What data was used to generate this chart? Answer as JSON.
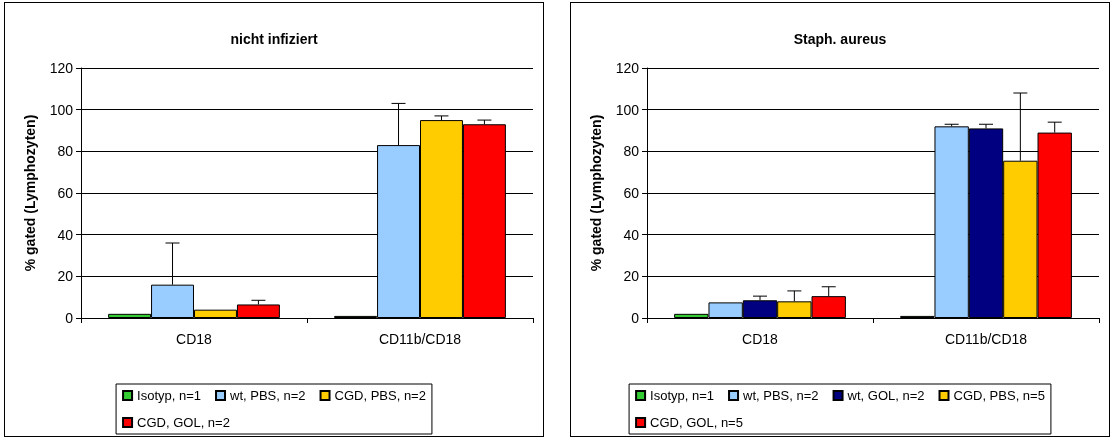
{
  "chart_data": [
    {
      "type": "bar",
      "title": "nicht infiziert",
      "ylabel": "% gated (Lymphozyten)",
      "categories": [
        "CD18",
        "CD11b/CD18"
      ],
      "ylim": [
        0,
        120
      ],
      "yticks": [
        0,
        20,
        40,
        60,
        80,
        100,
        120
      ],
      "grid": "y",
      "legend": "bottom",
      "series": [
        {
          "name": "Isotyp, n=1",
          "color": "#33cc33",
          "values": [
            2,
            1
          ]
        },
        {
          "name": "wt, PBS, n=2",
          "color": "#99ccff",
          "values": [
            16,
            83
          ],
          "errors": [
            [
              16,
              36
            ],
            [
              83,
              103
            ]
          ]
        },
        {
          "name": "CGD, PBS, n=2",
          "color": "#ffcc00",
          "values": [
            4,
            95
          ],
          "errors": [
            null,
            [
              95,
              97
            ]
          ]
        },
        {
          "name": "CGD, GOL, n=2",
          "color": "#ff0000",
          "values": [
            6.5,
            93
          ],
          "errors": [
            [
              6.5,
              8.5
            ],
            [
              93,
              95
            ]
          ]
        }
      ]
    },
    {
      "type": "bar",
      "title": "Staph. aureus",
      "ylabel": "% gated (Lymphozyten)",
      "categories": [
        "CD18",
        "CD11b/CD18"
      ],
      "ylim": [
        0,
        120
      ],
      "yticks": [
        0,
        20,
        40,
        60,
        80,
        100,
        120
      ],
      "grid": "y",
      "legend": "bottom",
      "series": [
        {
          "name": "Isotyp, n=1",
          "color": "#33cc33",
          "values": [
            2,
            1
          ]
        },
        {
          "name": "wt, PBS, n=2",
          "color": "#99ccff",
          "values": [
            7.5,
            92
          ],
          "errors": [
            null,
            [
              92,
              93
            ]
          ]
        },
        {
          "name": "wt, GOL, n=2",
          "color": "#000080",
          "values": [
            8.5,
            91
          ],
          "errors": [
            [
              8.5,
              10.5
            ],
            [
              91,
              93
            ]
          ]
        },
        {
          "name": "CGD, PBS, n=5",
          "color": "#ffcc00",
          "values": [
            8,
            75.5
          ],
          "errors": [
            [
              8,
              13
            ],
            [
              75.5,
              108
            ]
          ]
        },
        {
          "name": "CGD, GOL, n=5",
          "color": "#ff0000",
          "values": [
            10.5,
            89
          ],
          "errors": [
            [
              10.5,
              15
            ],
            [
              89,
              94
            ]
          ]
        }
      ]
    }
  ]
}
